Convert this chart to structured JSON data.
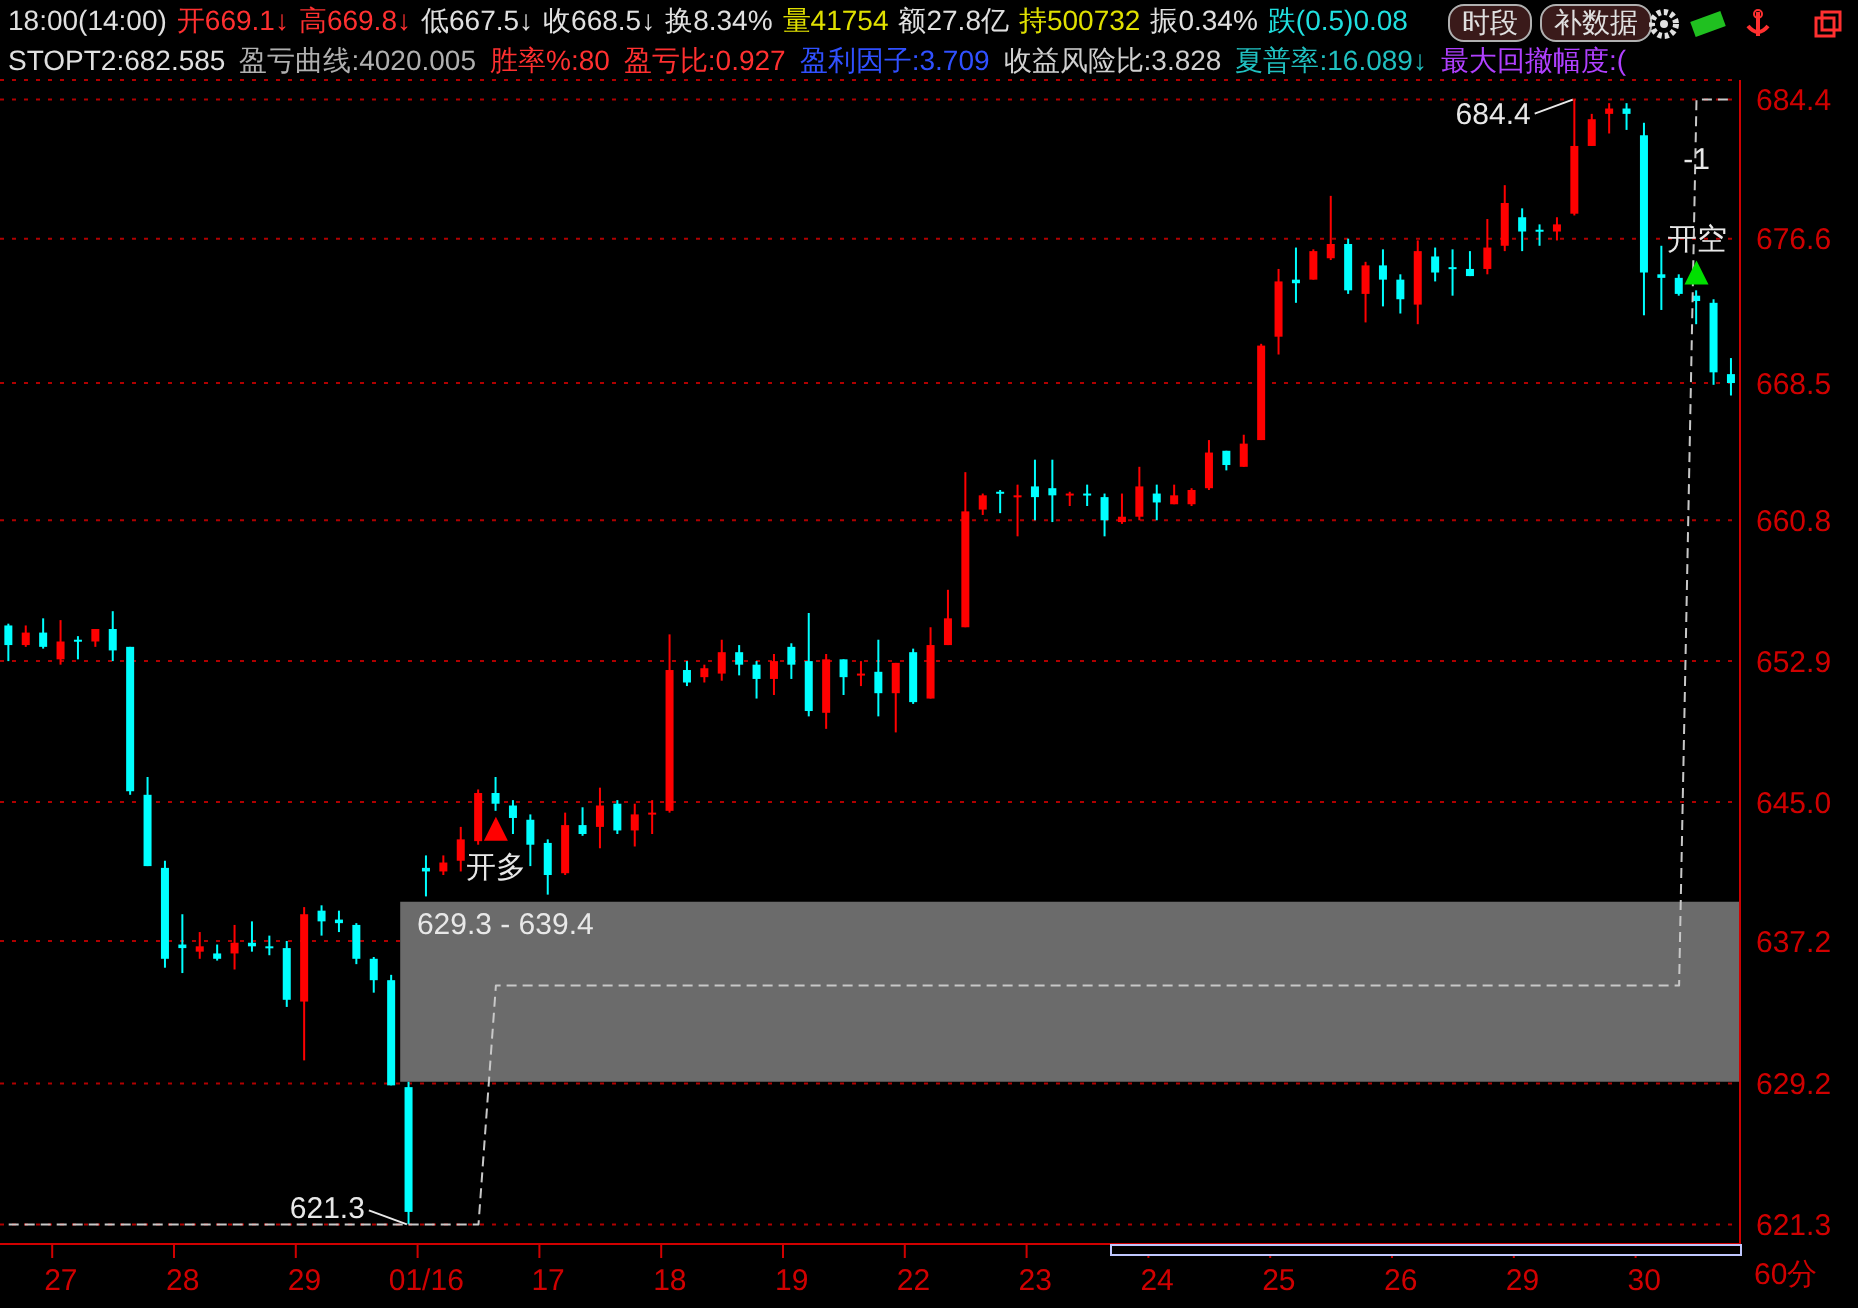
{
  "chart_data": {
    "type": "candlestick",
    "categories": [
      null,
      null,
      null,
      "27",
      null,
      null,
      null,
      null,
      null,
      null,
      "28",
      null,
      null,
      null,
      null,
      null,
      null,
      "29",
      null,
      null,
      null,
      null,
      null,
      null,
      "01/16",
      null,
      null,
      null,
      null,
      null,
      null,
      "17",
      null,
      null,
      null,
      null,
      null,
      null,
      "18",
      null,
      null,
      null,
      null,
      null,
      null,
      "19",
      null,
      null,
      null,
      null,
      null,
      null,
      "22",
      null,
      null,
      null,
      null,
      null,
      null,
      "23",
      null,
      null,
      null,
      null,
      null,
      null,
      "24",
      null,
      null,
      null,
      null,
      null,
      null,
      "25",
      null,
      null,
      null,
      null,
      null,
      null,
      "26",
      null,
      null,
      null,
      null,
      null,
      null,
      "29",
      null,
      null,
      null,
      null,
      null,
      null,
      "30",
      null,
      null,
      null,
      null,
      null
    ],
    "ohlc": [
      [
        654.9,
        655.0,
        652.9,
        653.8
      ],
      [
        653.8,
        654.9,
        653.7,
        654.5
      ],
      [
        654.5,
        655.3,
        653.6,
        653.7
      ],
      [
        653.0,
        655.2,
        652.7,
        654.0
      ],
      [
        654.1,
        654.3,
        653.0,
        654.0
      ],
      [
        654.0,
        654.7,
        653.7,
        654.7
      ],
      [
        654.7,
        655.7,
        652.9,
        653.5
      ],
      [
        653.7,
        653.7,
        645.4,
        645.6
      ],
      [
        645.4,
        646.4,
        641.4,
        641.4
      ],
      [
        641.3,
        641.7,
        635.7,
        636.2
      ],
      [
        637.0,
        638.7,
        635.4,
        636.8
      ],
      [
        636.6,
        637.7,
        636.2,
        636.9
      ],
      [
        636.5,
        637.0,
        636.1,
        636.2
      ],
      [
        636.5,
        638.1,
        635.6,
        637.1
      ],
      [
        637.1,
        638.3,
        636.6,
        636.9
      ],
      [
        636.9,
        637.5,
        636.4,
        636.8
      ],
      [
        636.8,
        637.2,
        633.5,
        633.9
      ],
      [
        633.8,
        639.1,
        630.5,
        638.7
      ],
      [
        638.9,
        639.2,
        637.5,
        638.3
      ],
      [
        638.4,
        638.9,
        637.7,
        638.2
      ],
      [
        638.1,
        638.2,
        635.9,
        636.2
      ],
      [
        636.2,
        636.3,
        634.3,
        635.0
      ],
      [
        635.0,
        635.3,
        629.1,
        629.1
      ],
      [
        629.0,
        629.3,
        621.3,
        622.0
      ],
      [
        641.3,
        642.0,
        639.7,
        641.1
      ],
      [
        641.1,
        642.0,
        640.9,
        641.6
      ],
      [
        641.7,
        643.6,
        641.1,
        642.9
      ],
      [
        642.8,
        645.7,
        642.6,
        645.5
      ],
      [
        645.5,
        646.4,
        644.5,
        644.9
      ],
      [
        644.8,
        645.1,
        643.2,
        644.1
      ],
      [
        644.0,
        644.3,
        641.4,
        642.6
      ],
      [
        642.7,
        642.9,
        639.8,
        640.9
      ],
      [
        641.0,
        644.4,
        640.9,
        643.7
      ],
      [
        643.7,
        644.7,
        643.1,
        643.2
      ],
      [
        643.6,
        645.8,
        642.4,
        644.8
      ],
      [
        644.9,
        645.1,
        643.2,
        643.4
      ],
      [
        643.4,
        644.9,
        642.5,
        644.3
      ],
      [
        644.3,
        645.1,
        643.2,
        644.4
      ],
      [
        644.5,
        654.4,
        644.4,
        652.4
      ],
      [
        652.4,
        652.9,
        651.5,
        651.7
      ],
      [
        652.0,
        652.7,
        651.7,
        652.5
      ],
      [
        652.2,
        654.1,
        651.8,
        653.4
      ],
      [
        653.4,
        653.8,
        652.1,
        652.7
      ],
      [
        652.7,
        652.9,
        650.8,
        651.9
      ],
      [
        651.9,
        653.3,
        651.0,
        652.9
      ],
      [
        653.7,
        653.9,
        651.9,
        652.7
      ],
      [
        652.9,
        655.6,
        649.8,
        650.1
      ],
      [
        650.0,
        653.3,
        649.1,
        653.0
      ],
      [
        653.0,
        653.0,
        651.0,
        652.0
      ],
      [
        652.1,
        652.9,
        651.5,
        652.2
      ],
      [
        652.3,
        654.1,
        649.8,
        651.1
      ],
      [
        651.1,
        652.8,
        648.9,
        652.8
      ],
      [
        653.4,
        653.6,
        650.5,
        650.6
      ],
      [
        650.8,
        654.8,
        650.8,
        653.8
      ],
      [
        653.8,
        656.9,
        653.8,
        655.3
      ],
      [
        654.8,
        663.5,
        654.8,
        661.3
      ],
      [
        661.4,
        662.3,
        661.1,
        662.2
      ],
      [
        662.4,
        662.5,
        661.2,
        662.3
      ],
      [
        662.1,
        662.8,
        659.9,
        662.2
      ],
      [
        662.7,
        664.2,
        660.8,
        662.1
      ],
      [
        662.6,
        664.2,
        660.7,
        662.2
      ],
      [
        662.2,
        662.4,
        661.6,
        662.3
      ],
      [
        662.3,
        662.8,
        661.6,
        662.2
      ],
      [
        662.1,
        662.3,
        659.9,
        660.8
      ],
      [
        660.7,
        662.3,
        660.6,
        661.0
      ],
      [
        661.0,
        663.8,
        660.8,
        662.7
      ],
      [
        662.3,
        662.8,
        660.8,
        661.8
      ],
      [
        661.7,
        662.8,
        661.7,
        662.2
      ],
      [
        661.7,
        662.6,
        661.6,
        662.5
      ],
      [
        662.6,
        665.3,
        662.5,
        664.6
      ],
      [
        664.7,
        664.7,
        663.6,
        663.9
      ],
      [
        663.8,
        665.6,
        663.8,
        665.1
      ],
      [
        665.3,
        670.7,
        665.3,
        670.6
      ],
      [
        671.1,
        674.9,
        670.1,
        674.2
      ],
      [
        674.3,
        676.1,
        673.0,
        674.1
      ],
      [
        674.3,
        676.0,
        674.3,
        675.9
      ],
      [
        675.5,
        679.0,
        675.4,
        676.3
      ],
      [
        676.3,
        676.6,
        673.5,
        673.7
      ],
      [
        673.5,
        675.3,
        671.9,
        675.1
      ],
      [
        675.1,
        676.0,
        672.8,
        674.3
      ],
      [
        674.3,
        674.6,
        672.4,
        673.2
      ],
      [
        672.9,
        676.5,
        671.8,
        675.9
      ],
      [
        675.6,
        676.1,
        674.2,
        674.7
      ],
      [
        675.0,
        676.0,
        673.4,
        674.9
      ],
      [
        674.9,
        675.9,
        674.5,
        674.5
      ],
      [
        674.9,
        677.7,
        674.6,
        676.1
      ],
      [
        676.2,
        679.6,
        675.9,
        678.6
      ],
      [
        677.8,
        678.3,
        675.9,
        677.0
      ],
      [
        677.1,
        677.4,
        676.2,
        677.0
      ],
      [
        677.0,
        677.8,
        676.5,
        677.4
      ],
      [
        678.0,
        684.4,
        677.9,
        681.8
      ],
      [
        681.8,
        683.6,
        681.8,
        683.3
      ],
      [
        683.6,
        684.2,
        682.5,
        683.9
      ],
      [
        683.9,
        684.2,
        682.7,
        683.6
      ],
      [
        682.4,
        683.1,
        672.3,
        674.7
      ],
      [
        674.6,
        676.2,
        672.6,
        674.4
      ],
      [
        674.4,
        674.6,
        673.4,
        673.5
      ],
      [
        673.4,
        673.7,
        671.8,
        673.1
      ],
      [
        673.0,
        673.2,
        668.4,
        669.1
      ],
      [
        669.0,
        669.9,
        667.8,
        668.5
      ]
    ],
    "colors": [
      "#00ffff",
      "#ff0000",
      "#00ffff",
      "#ff0000",
      "#00ffff",
      "#ff0000",
      "#00ffff",
      "#00ffff",
      "#00ffff",
      "#00ffff",
      "#00ffff",
      "#ff0000",
      "#00ffff",
      "#ff0000",
      "#00ffff",
      "#00ffff",
      "#00ffff",
      "#ff0000",
      "#00ffff",
      "#00ffff",
      "#00ffff",
      "#00ffff",
      "#00ffff",
      "#00ffff",
      "#00ffff",
      "#ff0000",
      "#ff0000",
      "#ff0000",
      "#00ffff",
      "#00ffff",
      "#00ffff",
      "#00ffff",
      "#ff0000",
      "#00ffff",
      "#ff0000",
      "#00ffff",
      "#ff0000",
      "#ff0000",
      "#ff0000",
      "#00ffff",
      "#ff0000",
      "#ff0000",
      "#00ffff",
      "#00ffff",
      "#ff0000",
      "#00ffff",
      "#00ffff",
      "#ff0000",
      "#00ffff",
      "#ff0000",
      "#00ffff",
      "#ff0000",
      "#00ffff",
      "#ff0000",
      "#ff0000",
      "#ff0000",
      "#ff0000",
      "#00ffff",
      "#ff0000",
      "#00ffff",
      "#00ffff",
      "#ff0000",
      "#00ffff",
      "#00ffff",
      "#ff0000",
      "#ff0000",
      "#00ffff",
      "#ff0000",
      "#ff0000",
      "#ff0000",
      "#00ffff",
      "#ff0000",
      "#ff0000",
      "#ff0000",
      "#00ffff",
      "#ff0000",
      "#ff0000",
      "#00ffff",
      "#ff0000",
      "#00ffff",
      "#00ffff",
      "#ff0000",
      "#00ffff",
      "#00ffff",
      "#00ffff",
      "#ff0000",
      "#ff0000",
      "#00ffff",
      "#00ffff",
      "#ff0000",
      "#ff0000",
      "#ff0000",
      "#ff0000",
      "#00ffff",
      "#00ffff",
      "#00ffff",
      "#00ffff",
      "#00ffff",
      "#00ffff",
      "#00ffff"
    ],
    "series": [
      {
        "type": "line",
        "color": "#c8c8c8",
        "line_style": "dashed",
        "marker": "none",
        "values": [
          621.3,
          621.3,
          621.3,
          621.3,
          621.3,
          621.3,
          621.3,
          621.3,
          621.3,
          621.3,
          621.3,
          621.3,
          621.3,
          621.3,
          621.3,
          621.3,
          621.3,
          621.3,
          621.3,
          621.3,
          621.3,
          621.3,
          621.3,
          621.3,
          621.3,
          621.3,
          621.3,
          621.3,
          634.7,
          634.7,
          634.7,
          634.7,
          634.7,
          634.7,
          634.7,
          634.7,
          634.7,
          634.7,
          634.7,
          634.7,
          634.7,
          634.7,
          634.7,
          634.7,
          634.7,
          634.7,
          634.7,
          634.7,
          634.7,
          634.7,
          634.7,
          634.7,
          634.7,
          634.7,
          634.7,
          634.7,
          634.7,
          634.7,
          634.7,
          634.7,
          634.7,
          634.7,
          634.7,
          634.7,
          634.7,
          634.7,
          634.7,
          634.7,
          634.7,
          634.7,
          634.7,
          634.7,
          634.7,
          634.7,
          634.7,
          634.7,
          634.7,
          634.7,
          634.7,
          634.7,
          634.7,
          634.7,
          634.7,
          634.7,
          634.7,
          634.7,
          634.7,
          634.7,
          634.7,
          634.7,
          634.7,
          634.7,
          634.7,
          634.7,
          634.7,
          634.7,
          634.7,
          684.4,
          684.4,
          684.4
        ]
      },
      {
        "type": "scatter",
        "color": "#ff0000",
        "marker": "triangle",
        "values": [
          null,
          null,
          null,
          null,
          null,
          null,
          null,
          null,
          null,
          null,
          null,
          null,
          null,
          null,
          null,
          null,
          null,
          null,
          null,
          null,
          null,
          null,
          null,
          null,
          null,
          null,
          null,
          null,
          643.5,
          null,
          null,
          null,
          null,
          null,
          null,
          null,
          null,
          null,
          null,
          null,
          null,
          null,
          null,
          null,
          null,
          null,
          null,
          null,
          null,
          null,
          null,
          null,
          null,
          null,
          null,
          null,
          null,
          null,
          null,
          null,
          null,
          null,
          null,
          null,
          null,
          null,
          null,
          null,
          null,
          null,
          null,
          null,
          null,
          null,
          null,
          null,
          null,
          null,
          null,
          null,
          null,
          null,
          null,
          null,
          null,
          null,
          null,
          null,
          null,
          null,
          null,
          null,
          null,
          null,
          null,
          null,
          null,
          null,
          null,
          null
        ],
        "value_labels": [
          null,
          null,
          null,
          null,
          null,
          null,
          null,
          null,
          null,
          null,
          null,
          null,
          null,
          null,
          null,
          null,
          null,
          null,
          null,
          null,
          null,
          null,
          null,
          null,
          null,
          null,
          null,
          null,
          "开多",
          null,
          null,
          null,
          null,
          null,
          null,
          null,
          null,
          null,
          null,
          null,
          null,
          null,
          null,
          null,
          null,
          null,
          null,
          null,
          null,
          null,
          null,
          null,
          null,
          null,
          null,
          null,
          null,
          null,
          null,
          null,
          null,
          null,
          null,
          null,
          null,
          null,
          null,
          null,
          null,
          null,
          null,
          null,
          null,
          null,
          null,
          null,
          null,
          null,
          null,
          null,
          null,
          null,
          null,
          null,
          null,
          null,
          null,
          null,
          null,
          null,
          null,
          null,
          null,
          null,
          null,
          null,
          null,
          null,
          null,
          null
        ]
      },
      {
        "type": "scatter",
        "color": "#00e000",
        "marker": "triangle",
        "values": [
          null,
          null,
          null,
          null,
          null,
          null,
          null,
          null,
          null,
          null,
          null,
          null,
          null,
          null,
          null,
          null,
          null,
          null,
          null,
          null,
          null,
          null,
          null,
          null,
          null,
          null,
          null,
          null,
          null,
          null,
          null,
          null,
          null,
          null,
          null,
          null,
          null,
          null,
          null,
          null,
          null,
          null,
          null,
          null,
          null,
          null,
          null,
          null,
          null,
          null,
          null,
          null,
          null,
          null,
          null,
          null,
          null,
          null,
          null,
          null,
          null,
          null,
          null,
          null,
          null,
          null,
          null,
          null,
          null,
          null,
          null,
          null,
          null,
          null,
          null,
          null,
          null,
          null,
          null,
          null,
          null,
          null,
          null,
          null,
          null,
          null,
          null,
          null,
          null,
          null,
          null,
          null,
          null,
          null,
          null,
          null,
          null,
          674.7,
          null,
          null
        ],
        "value_labels": [
          null,
          null,
          null,
          null,
          null,
          null,
          null,
          null,
          null,
          null,
          null,
          null,
          null,
          null,
          null,
          null,
          null,
          null,
          null,
          null,
          null,
          null,
          null,
          null,
          null,
          null,
          null,
          null,
          null,
          null,
          null,
          null,
          null,
          null,
          null,
          null,
          null,
          null,
          null,
          null,
          null,
          null,
          null,
          null,
          null,
          null,
          null,
          null,
          null,
          null,
          null,
          null,
          null,
          null,
          null,
          null,
          null,
          null,
          null,
          null,
          null,
          null,
          null,
          null,
          null,
          null,
          null,
          null,
          null,
          null,
          null,
          null,
          null,
          null,
          null,
          null,
          null,
          null,
          null,
          null,
          null,
          null,
          null,
          null,
          null,
          null,
          null,
          null,
          null,
          null,
          null,
          null,
          null,
          null,
          null,
          null,
          null,
          "开空",
          null,
          null
        ]
      }
    ],
    "ylim": [
      620.2,
      685.5
    ],
    "yticks": [
      621.3,
      629.2,
      637.2,
      {
        "value": 645.0,
        "label": "645.0"
      },
      652.9,
      660.8,
      668.5,
      676.6,
      684.4
    ],
    "grid": "y",
    "bands": [
      {
        "axis": "y",
        "from": 629.3,
        "to": 639.4,
        "label": "629.3 - 639.4",
        "color": "#6b6b6b"
      }
    ],
    "annotations": [
      "18:00(14:00)",
      "开669.1↓",
      "高669.8↓",
      "低667.5↓",
      "收668.5↓",
      "换8.34%",
      "量41754",
      "额27.8亿",
      "持500732",
      "振0.34%",
      "跌(0.5)0.08",
      "STOPT2:682.585",
      "盈亏曲线:4020.005",
      "胜率%:80",
      "盈亏比:0.927",
      "盈利因子:3.709",
      "收益风险比:3.828",
      "夏普率:16.089↓",
      "最大回撤幅度:(",
      "时段",
      "补数据",
      "60分",
      "684.4",
      "621.3",
      "-1"
    ]
  }
}
